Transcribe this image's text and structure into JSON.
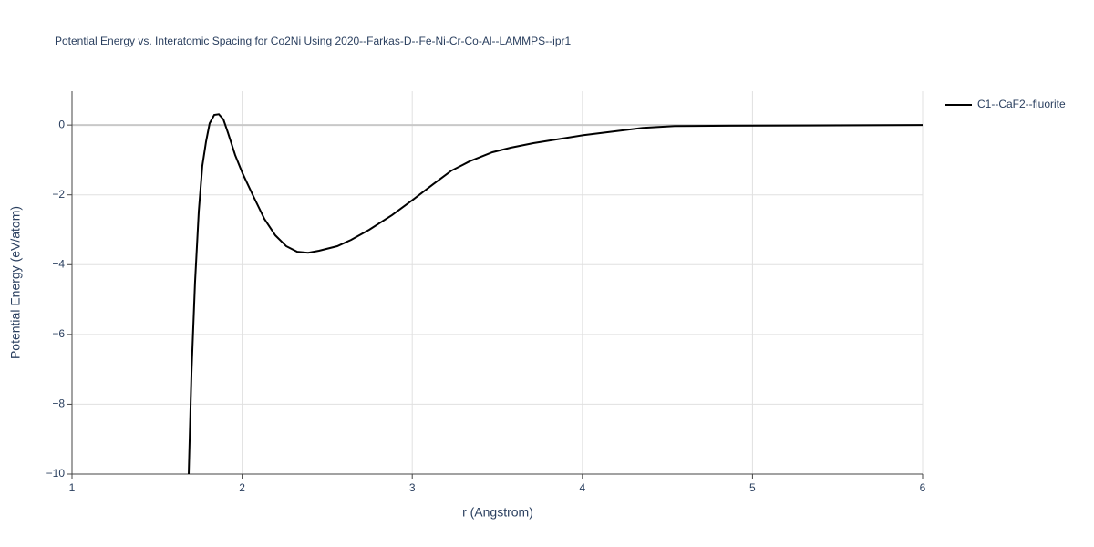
{
  "chart_data": {
    "type": "line",
    "title": "Potential Energy vs. Interatomic Spacing for Co2Ni Using 2020--Farkas-D--Fe-Ni-Cr-Co-Al--LAMMPS--ipr1",
    "x_label": "r (Angstrom)",
    "y_label": "Potential Energy (eV/atom)",
    "x": [
      1.686,
      1.702,
      1.723,
      1.745,
      1.766,
      1.788,
      1.809,
      1.836,
      1.863,
      1.89,
      1.916,
      1.959,
      2.002,
      2.066,
      2.131,
      2.195,
      2.259,
      2.324,
      2.388,
      2.452,
      2.559,
      2.64,
      2.747,
      2.881,
      3.004,
      3.122,
      3.229,
      3.337,
      3.471,
      3.578,
      3.712,
      4.006,
      4.355,
      4.542,
      4.864,
      6.0
    ],
    "series": [
      {
        "name": "C1--CaF2--fluorite",
        "color": "#000000",
        "values": [
          -10,
          -7.13,
          -4.52,
          -2.48,
          -1.17,
          -0.47,
          0.05,
          0.29,
          0.31,
          0.16,
          -0.21,
          -0.86,
          -1.38,
          -2.04,
          -2.69,
          -3.16,
          -3.47,
          -3.63,
          -3.66,
          -3.6,
          -3.47,
          -3.29,
          -3.0,
          -2.58,
          -2.14,
          -1.7,
          -1.31,
          -1.04,
          -0.78,
          -0.65,
          -0.52,
          -0.29,
          -0.08,
          -0.03,
          -0.02,
          0
        ]
      }
    ],
    "xlim": [
      1,
      6
    ],
    "ylim": [
      -10,
      0.97
    ],
    "xticks": [
      1,
      2,
      3,
      4,
      5,
      6
    ],
    "yticks": [
      {
        "value": -10,
        "label": "−10"
      },
      {
        "value": -8,
        "label": "−8"
      },
      {
        "value": -6,
        "label": "−6"
      },
      {
        "value": -4,
        "label": "−4"
      },
      {
        "value": -2,
        "label": "−2"
      },
      0
    ],
    "grid": true,
    "legend": "right"
  }
}
